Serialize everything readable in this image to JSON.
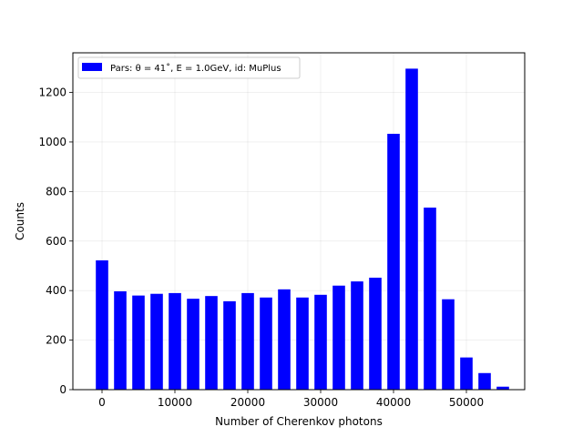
{
  "chart_data": {
    "type": "bar",
    "xlabel": "Number of Cherenkov photons",
    "ylabel": "Counts",
    "xlim": [
      -4000,
      58000
    ],
    "ylim": [
      0,
      1360
    ],
    "grid": true,
    "legend_placement": "top-left",
    "bar_color": "#0000ff",
    "x_ticks": [
      0,
      10000,
      20000,
      30000,
      40000,
      50000
    ],
    "y_ticks": [
      0,
      200,
      400,
      600,
      800,
      1000,
      1200
    ],
    "x_tick_labels": [
      "0",
      "10000",
      "20000",
      "30000",
      "40000",
      "50000"
    ],
    "y_tick_labels": [
      "0",
      "200",
      "400",
      "600",
      "800",
      "1000",
      "1200"
    ],
    "bar_width": 1700,
    "series": [
      {
        "name": "Pars: θ = 41˚, E = 1.0GeV, id: MuPlus",
        "x": [
          0,
          2500,
          5000,
          7500,
          10000,
          12500,
          15000,
          17500,
          20000,
          22500,
          25000,
          27500,
          30000,
          32500,
          35000,
          37500,
          40000,
          42500,
          45000,
          47500,
          50000,
          52500,
          55000
        ],
        "values": [
          522,
          397,
          380,
          387,
          390,
          367,
          378,
          357,
          390,
          372,
          405,
          372,
          383,
          420,
          437,
          452,
          1033,
          1296,
          735,
          365,
          130,
          67,
          12
        ]
      }
    ]
  }
}
